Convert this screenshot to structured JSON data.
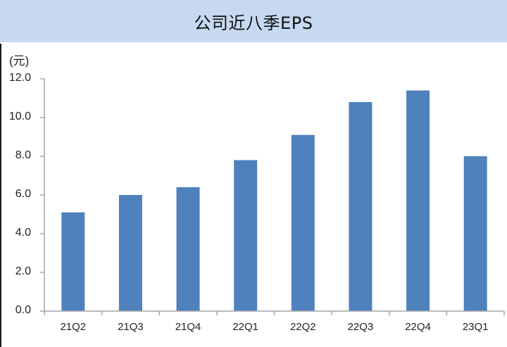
{
  "header": {
    "title": "公司近八季EPS"
  },
  "chart_data": {
    "type": "bar",
    "title": "公司近八季EPS",
    "xlabel": "",
    "ylabel": "(元)",
    "categories": [
      "21Q2",
      "21Q3",
      "21Q4",
      "22Q1",
      "22Q2",
      "22Q3",
      "22Q4",
      "23Q1"
    ],
    "values": [
      5.1,
      6.0,
      6.4,
      7.8,
      9.1,
      10.8,
      11.4,
      8.0
    ],
    "ylim": [
      0,
      12
    ],
    "yticks": [
      "0.0",
      "2.0",
      "4.0",
      "6.0",
      "8.0",
      "10.0",
      "12.0"
    ],
    "grid": false,
    "legend": null,
    "bar_color": "#4f81bd"
  },
  "colors": {
    "header_bg": "#c6d9f1",
    "bar": "#4f81bd",
    "axis": "#a6a6a6"
  }
}
